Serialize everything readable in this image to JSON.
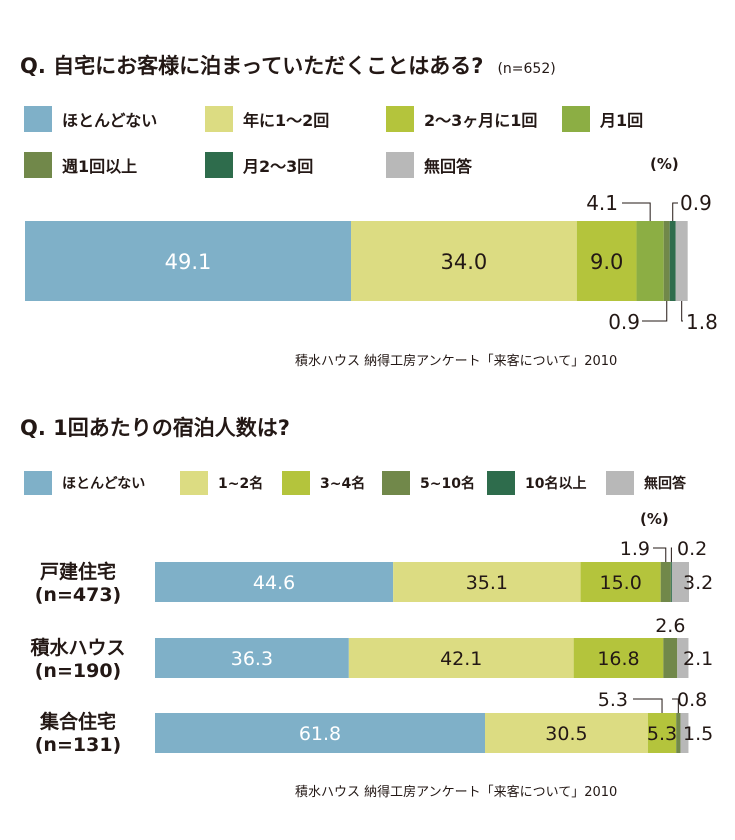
{
  "colors": {
    "c1": "#7fb0c8",
    "c2": "#dcdc82",
    "c3": "#b4c43c",
    "c4": "#8cae44",
    "c5": "#71884a",
    "c6": "#2e6c4c",
    "c7": "#b8b8b8"
  },
  "chart_data": [
    {
      "type": "bar",
      "orientation": "horizontal-stacked",
      "title": "Q. 自宅にお客様に泊まっていただくことはある?",
      "sample_size": "(n=652)",
      "unit": "(%)",
      "categories": [
        ""
      ],
      "series": [
        {
          "name": "ほとんどない",
          "color_key": "c1",
          "values": [
            49.1
          ]
        },
        {
          "name": "年に1〜2回",
          "color_key": "c2",
          "values": [
            34.0
          ]
        },
        {
          "name": "2〜3ヶ月に1回",
          "color_key": "c3",
          "values": [
            9.0
          ]
        },
        {
          "name": "月1回",
          "color_key": "c4",
          "values": [
            4.1
          ]
        },
        {
          "name": "週1回以上",
          "color_key": "c5",
          "values": [
            0.9
          ]
        },
        {
          "name": "月2〜3回",
          "color_key": "c6",
          "values": [
            0.9
          ]
        },
        {
          "name": "無回答",
          "color_key": "c7",
          "values": [
            1.8
          ]
        }
      ],
      "source": "積水ハウス 納得工房アンケート「来客について」2010"
    },
    {
      "type": "bar",
      "orientation": "horizontal-stacked",
      "title": "Q. 1回あたりの宿泊人数は?",
      "unit": "(%)",
      "categories": [
        {
          "name": "戸建住宅",
          "n": "(n=473)"
        },
        {
          "name": "積水ハウス",
          "n": "(n=190)"
        },
        {
          "name": "集合住宅",
          "n": "(n=131)"
        }
      ],
      "series": [
        {
          "name": "ほとんどない",
          "color_key": "c1",
          "values": [
            44.6,
            36.3,
            61.8
          ]
        },
        {
          "name": "1~2名",
          "color_key": "c2",
          "values": [
            35.1,
            42.1,
            30.5
          ]
        },
        {
          "name": "3~4名",
          "color_key": "c3",
          "values": [
            15.0,
            16.8,
            5.3
          ]
        },
        {
          "name": "5~10名",
          "color_key": "c5",
          "values": [
            1.9,
            2.6,
            0.8
          ]
        },
        {
          "name": "10名以上",
          "color_key": "c6",
          "values": [
            0.2,
            0.0,
            0.0
          ]
        },
        {
          "name": "無回答",
          "color_key": "c7",
          "values": [
            3.2,
            2.1,
            1.5
          ]
        }
      ],
      "source": "積水ハウス 納得工房アンケート「来客について」2010"
    }
  ]
}
